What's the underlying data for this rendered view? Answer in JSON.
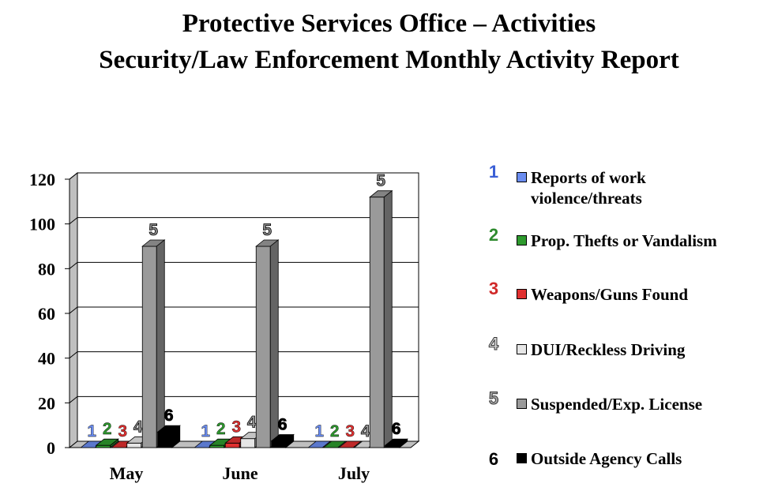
{
  "title": "Protective Services Office – Activities",
  "subtitle": "Security/Law Enforcement Monthly Activity Report",
  "colors": {
    "s1": "#6b8df0",
    "s2": "#2e9a2e",
    "s3": "#e03030",
    "s4": "#e6e6e6",
    "s5": "#9a9a9a",
    "s6": "#000000"
  },
  "chart_data": {
    "type": "bar",
    "title": "Protective Services Office – Activities",
    "subtitle": "Security/Law Enforcement Monthly Activity Report",
    "categories": [
      "May",
      "June",
      "July"
    ],
    "ylim": [
      0,
      120
    ],
    "yticks": [
      "0",
      "20",
      "40",
      "60",
      "80",
      "100",
      "120"
    ],
    "grid": true,
    "legend_position": "right",
    "series": [
      {
        "name": "Reports of work violence/threats",
        "marker": "1",
        "values": [
          0,
          0,
          0
        ]
      },
      {
        "name": "Prop. Thefts or Vandalism",
        "marker": "2",
        "values": [
          1,
          1,
          0
        ]
      },
      {
        "name": "Weapons/Guns Found",
        "marker": "3",
        "values": [
          0,
          2,
          0
        ]
      },
      {
        "name": "DUI/Reckless Driving",
        "marker": "4",
        "values": [
          2,
          4,
          0
        ]
      },
      {
        "name": "Suspended/Exp. License",
        "marker": "5",
        "values": [
          90,
          90,
          112
        ]
      },
      {
        "name": "Outside Agency Calls",
        "marker": "6",
        "values": [
          7,
          3,
          1
        ]
      }
    ]
  },
  "legend": [
    {
      "marker": "1",
      "label": "Reports of work violence/threats",
      "label_lines": [
        "Reports of work",
        "violence/threats"
      ]
    },
    {
      "marker": "2",
      "label": "Prop. Thefts or Vandalism",
      "label_lines": [
        "Prop. Thefts or Vandalism"
      ]
    },
    {
      "marker": "3",
      "label": "Weapons/Guns Found",
      "label_lines": [
        "Weapons/Guns Found"
      ]
    },
    {
      "marker": "4",
      "label": "DUI/Reckless Driving",
      "label_lines": [
        "DUI/Reckless Driving"
      ]
    },
    {
      "marker": "5",
      "label": "Suspended/Exp. License",
      "label_lines": [
        "Suspended/Exp. License"
      ]
    },
    {
      "marker": "6",
      "label": "Outside Agency Calls",
      "label_lines": [
        "Outside Agency Calls"
      ]
    }
  ]
}
